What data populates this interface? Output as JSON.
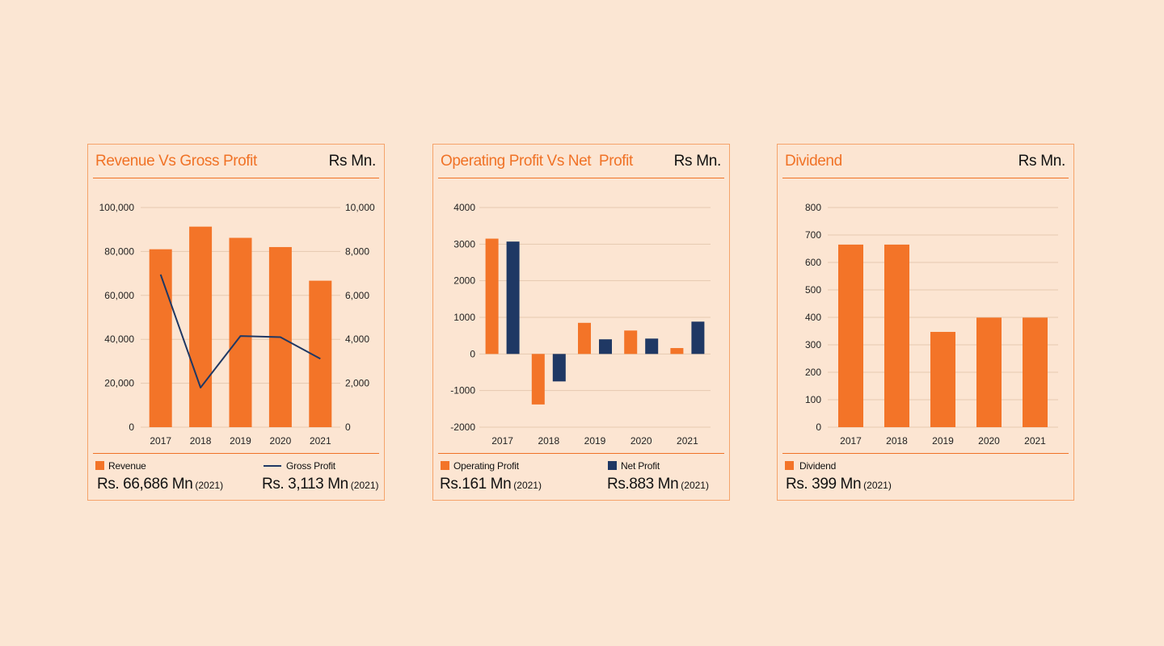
{
  "colors": {
    "orange": "#f37428",
    "navy": "#1f3864",
    "grid": "#e6c9b0"
  },
  "panels": [
    {
      "title": "Revenue Vs Gross Profit",
      "unit": "Rs Mn.",
      "legend": [
        {
          "label": "Revenue",
          "value": "Rs. 66,686 Mn",
          "year": "(2021)"
        },
        {
          "label": "Gross Profit",
          "value": "Rs. 3,113 Mn",
          "year": "(2021)"
        }
      ]
    },
    {
      "title": "Operating Profit Vs Net  Profit",
      "unit": "Rs Mn.",
      "legend": [
        {
          "label": "Operating Profit",
          "value": "Rs.161 Mn",
          "year": "(2021)"
        },
        {
          "label": "Net Profit",
          "value": "Rs.883 Mn",
          "year": "(2021)"
        }
      ]
    },
    {
      "title": "Dividend",
      "unit": "Rs Mn.",
      "legend": [
        {
          "label": "Dividend",
          "value": "Rs. 399 Mn",
          "year": "(2021)"
        }
      ]
    }
  ],
  "chart_data": [
    {
      "type": "bar",
      "categories": [
        "2017",
        "2018",
        "2019",
        "2020",
        "2021"
      ],
      "series": [
        {
          "name": "Revenue",
          "type": "bar",
          "axis": "left",
          "values": [
            81000,
            91300,
            86200,
            82000,
            66686
          ]
        },
        {
          "name": "Gross Profit",
          "type": "line",
          "axis": "right",
          "values": [
            6950,
            1800,
            4150,
            4100,
            3113
          ]
        }
      ],
      "ylim": [
        0,
        100000
      ],
      "yticks": [
        "0",
        "20,000",
        "40,000",
        "60,000",
        "80,000",
        "100,000"
      ],
      "y2lim": [
        0,
        10000
      ],
      "y2ticks": [
        "0",
        "2,000",
        "4,000",
        "6,000",
        "8,000",
        "10,000"
      ],
      "grid": true
    },
    {
      "type": "bar",
      "categories": [
        "2017",
        "2018",
        "2019",
        "2020",
        "2021"
      ],
      "series": [
        {
          "name": "Operating Profit",
          "values": [
            3150,
            -1380,
            850,
            640,
            161
          ]
        },
        {
          "name": "Net Profit",
          "values": [
            3070,
            -750,
            400,
            420,
            883
          ]
        }
      ],
      "ylim": [
        -2000,
        4000
      ],
      "yticks": [
        "-2000",
        "-1000",
        "0",
        "1000",
        "2000",
        "3000",
        "4000"
      ],
      "grid": true
    },
    {
      "type": "bar",
      "categories": [
        "2017",
        "2018",
        "2019",
        "2020",
        "2021"
      ],
      "series": [
        {
          "name": "Dividend",
          "values": [
            665,
            665,
            347,
            399,
            399
          ]
        }
      ],
      "ylim": [
        0,
        800
      ],
      "yticks": [
        "0",
        "100",
        "200",
        "300",
        "400",
        "500",
        "600",
        "700",
        "800"
      ],
      "grid": true
    }
  ]
}
